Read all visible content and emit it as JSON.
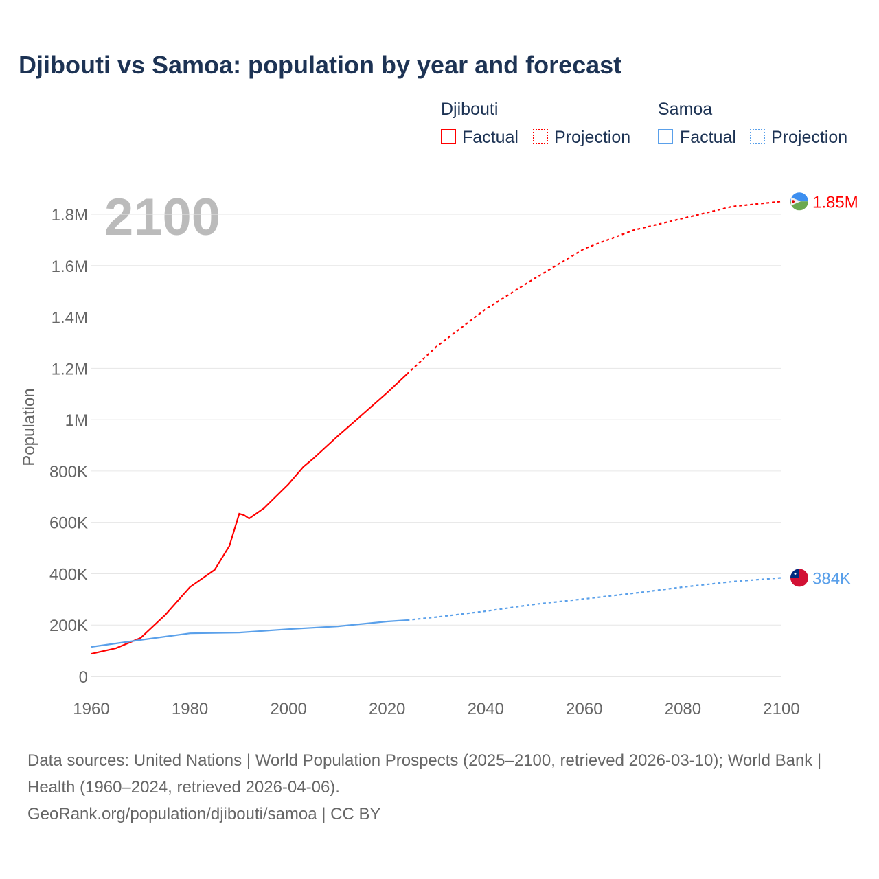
{
  "title": "Djibouti vs Samoa: population by year and forecast",
  "legend": {
    "djibouti": "Djibouti",
    "samoa": "Samoa",
    "factual": "Factual",
    "projection": "Projection"
  },
  "year_overlay": "2100",
  "source_line1": "Data sources: United Nations | World Population Prospects (2025–2100, retrieved 2026-03-10); World Bank | Health (1960–2024, retrieved 2026-04-06).",
  "source_line2": "GeoRank.org/population/djibouti/samoa | CC BY",
  "colors": {
    "djibouti": "#ff0000",
    "samoa": "#5aa0ea"
  },
  "chart_data": {
    "type": "line",
    "title": "Djibouti vs Samoa: population by year and forecast",
    "xlabel": "",
    "ylabel": "Population",
    "xlim": [
      1960,
      2100
    ],
    "ylim": [
      0,
      1800000
    ],
    "xticks": [
      1960,
      1980,
      2000,
      2020,
      2040,
      2060,
      2080,
      2100
    ],
    "yticks": [
      {
        "v": 0,
        "l": "0"
      },
      {
        "v": 200000,
        "l": "200K"
      },
      {
        "v": 400000,
        "l": "400K"
      },
      {
        "v": 600000,
        "l": "600K"
      },
      {
        "v": 800000,
        "l": "800K"
      },
      {
        "v": 1000000,
        "l": "1M"
      },
      {
        "v": 1200000,
        "l": "1.2M"
      },
      {
        "v": 1400000,
        "l": "1.4M"
      },
      {
        "v": 1600000,
        "l": "1.6M"
      },
      {
        "v": 1800000,
        "l": "1.8M"
      }
    ],
    "series": [
      {
        "name": "Djibouti",
        "end_label": "1.85M",
        "factual": [
          [
            1960,
            88000
          ],
          [
            1965,
            110000
          ],
          [
            1970,
            150000
          ],
          [
            1975,
            240000
          ],
          [
            1980,
            348000
          ],
          [
            1985,
            415000
          ],
          [
            1988,
            508000
          ],
          [
            1990,
            634000
          ],
          [
            1991,
            628000
          ],
          [
            1992,
            615000
          ],
          [
            1993,
            628000
          ],
          [
            1995,
            655000
          ],
          [
            2000,
            749000
          ],
          [
            2003,
            816000
          ],
          [
            2005,
            848000
          ],
          [
            2010,
            936000
          ],
          [
            2015,
            1020000
          ],
          [
            2020,
            1105000
          ],
          [
            2024,
            1177000
          ]
        ],
        "projection": [
          [
            2024,
            1177000
          ],
          [
            2030,
            1284000
          ],
          [
            2040,
            1431000
          ],
          [
            2050,
            1551000
          ],
          [
            2060,
            1666000
          ],
          [
            2070,
            1738000
          ],
          [
            2080,
            1784000
          ],
          [
            2090,
            1830000
          ],
          [
            2100,
            1850000
          ]
        ]
      },
      {
        "name": "Samoa",
        "end_label": "384K",
        "factual": [
          [
            1960,
            115000
          ],
          [
            1970,
            142000
          ],
          [
            1975,
            155000
          ],
          [
            1980,
            168000
          ],
          [
            1990,
            171000
          ],
          [
            2000,
            184000
          ],
          [
            2010,
            195000
          ],
          [
            2020,
            214000
          ],
          [
            2024,
            219000
          ]
        ],
        "projection": [
          [
            2024,
            219000
          ],
          [
            2030,
            231000
          ],
          [
            2040,
            254000
          ],
          [
            2050,
            281000
          ],
          [
            2060,
            302000
          ],
          [
            2070,
            324000
          ],
          [
            2080,
            348000
          ],
          [
            2090,
            369000
          ],
          [
            2100,
            384000
          ]
        ]
      }
    ]
  }
}
